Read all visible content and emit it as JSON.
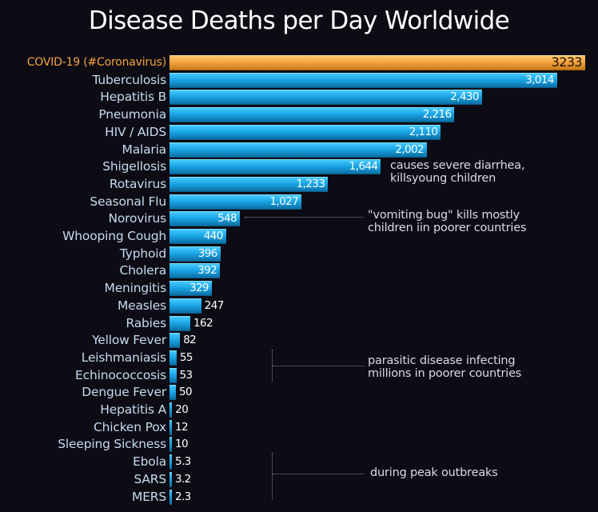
{
  "title": "Disease Deaths per Day Worldwide",
  "colors": {
    "background": "#0d0b14",
    "highlight_bar": "#f5a442",
    "highlight_label": "#f5a442",
    "bar": "#1aa6e6",
    "label": "#c4dcee"
  },
  "chart_data": {
    "type": "bar",
    "orientation": "horizontal",
    "categories": [
      "COVID-19 (#Coronavirus)",
      "Tuberculosis",
      "Hepatitis B",
      "Pneumonia",
      "HIV / AIDS",
      "Malaria",
      "Shigellosis",
      "Rotavirus",
      "Seasonal Flu",
      "Norovirus",
      "Whooping Cough",
      "Typhoid",
      "Cholera",
      "Meningitis",
      "Measles",
      "Rabies",
      "Yellow Fever",
      "Leishmaniasis",
      "Echinococcosis",
      "Dengue Fever",
      "Hepatitis A",
      "Chicken Pox",
      "Sleeping Sickness",
      "Ebola",
      "SARS",
      "MERS"
    ],
    "values": [
      3233,
      3014,
      2430,
      2216,
      2110,
      2002,
      1644,
      1233,
      1027,
      548,
      440,
      396,
      392,
      329,
      247,
      162,
      82,
      55,
      53,
      50,
      20,
      12,
      10,
      5.3,
      3.2,
      2.3
    ],
    "value_labels": [
      "3233",
      "3,014",
      "2,430",
      "2,216",
      "2,110",
      "2,002",
      "1,644",
      "1,233",
      "1,027",
      "548",
      "440",
      "396",
      "392",
      "329",
      "247",
      "162",
      "82",
      "55",
      "53",
      "50",
      "20",
      "12",
      "10",
      "5.3",
      "3.2",
      "2.3"
    ],
    "highlight_index": 0,
    "title": "Disease Deaths per Day Worldwide",
    "xlabel": "",
    "ylabel": "",
    "grid": false,
    "legend": "none",
    "annotations": [
      {
        "lines": [
          "causes severe diarrhea,",
          "killsyoung children"
        ],
        "target": "Shigellosis"
      },
      {
        "lines": [
          "\"vomiting bug\" kills mostly",
          "children iin poorer countries"
        ],
        "target": "Norovirus"
      },
      {
        "lines": [
          "parasitic disease infecting",
          "millions in poorer countries"
        ],
        "target": "Leishmaniasis, Echinococcosis, Dengue Fever"
      },
      {
        "lines": [
          "during peak outbreaks"
        ],
        "target": "Ebola, SARS, MERS"
      }
    ]
  }
}
